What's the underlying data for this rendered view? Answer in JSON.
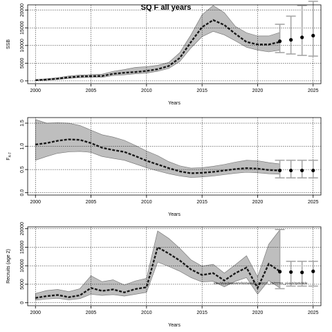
{
  "chart_data": [
    {
      "type": "line",
      "title": "SQ F all years",
      "xlabel": "Years",
      "ylabel": "SSB",
      "xlim": [
        1999.3,
        2025.7
      ],
      "ylim": [
        -800,
        21500
      ],
      "xticks": [
        2000,
        2005,
        2010,
        2015,
        2020,
        2025
      ],
      "yticks": [
        0,
        5000,
        10000,
        15000,
        20000
      ],
      "grid": true,
      "band_color": "#bebebe",
      "errorbar_color": "#a6a6a6",
      "x": [
        2000,
        2001,
        2002,
        2003,
        2004,
        2005,
        2006,
        2007,
        2008,
        2009,
        2010,
        2011,
        2012,
        2013,
        2014,
        2015,
        2016,
        2017,
        2018,
        2019,
        2020,
        2021,
        2022
      ],
      "median": [
        200,
        350,
        600,
        1000,
        1250,
        1350,
        1400,
        2000,
        2300,
        2500,
        2800,
        3300,
        4200,
        6500,
        11000,
        15200,
        17200,
        15800,
        13300,
        11000,
        10300,
        10300,
        11000
      ],
      "lower": [
        100,
        200,
        400,
        700,
        900,
        1000,
        1000,
        1500,
        1700,
        2000,
        2200,
        2700,
        3500,
        5500,
        9300,
        12500,
        14000,
        13000,
        11300,
        9500,
        8700,
        8200,
        8700
      ],
      "upper": [
        350,
        600,
        900,
        1400,
        1650,
        1750,
        1900,
        2700,
        3200,
        3800,
        4000,
        4400,
        5200,
        8000,
        13000,
        18700,
        21300,
        19300,
        15400,
        13600,
        12700,
        12700,
        13700
      ],
      "forecast": {
        "x": [
          2022,
          2023,
          2024,
          2025
        ],
        "value": [
          11200,
          11600,
          12300,
          12800
        ],
        "lower": [
          8000,
          7600,
          7200,
          7000
        ],
        "upper": [
          16000,
          18300,
          21300,
          22500
        ]
      }
    },
    {
      "type": "line",
      "xlabel": "Years",
      "ylabel": "F",
      "ylabel_sub": "4-7",
      "xlim": [
        1999.3,
        2025.7
      ],
      "ylim": [
        -0.05,
        1.62
      ],
      "xticks": [
        2000,
        2005,
        2010,
        2015,
        2020,
        2025
      ],
      "yticks": [
        0.0,
        0.5,
        1.0,
        1.5
      ],
      "ytick_labels": [
        "0.0",
        "0.5",
        "1.0",
        "1.5"
      ],
      "grid": true,
      "band_color": "#bebebe",
      "errorbar_color": "#a6a6a6",
      "x": [
        2000,
        2001,
        2002,
        2003,
        2004,
        2005,
        2006,
        2007,
        2008,
        2009,
        2010,
        2011,
        2012,
        2013,
        2014,
        2015,
        2016,
        2017,
        2018,
        2019,
        2020,
        2021,
        2022
      ],
      "median": [
        1.04,
        1.07,
        1.12,
        1.15,
        1.14,
        1.07,
        0.97,
        0.92,
        0.88,
        0.79,
        0.69,
        0.61,
        0.53,
        0.46,
        0.42,
        0.43,
        0.45,
        0.48,
        0.51,
        0.53,
        0.52,
        0.49,
        0.48
      ],
      "lower": [
        0.7,
        0.78,
        0.85,
        0.88,
        0.89,
        0.87,
        0.78,
        0.74,
        0.7,
        0.62,
        0.54,
        0.47,
        0.41,
        0.36,
        0.33,
        0.34,
        0.36,
        0.39,
        0.42,
        0.44,
        0.43,
        0.41,
        0.4
      ],
      "upper": [
        1.58,
        1.5,
        1.51,
        1.5,
        1.45,
        1.35,
        1.25,
        1.2,
        1.13,
        1.02,
        0.9,
        0.8,
        0.67,
        0.58,
        0.53,
        0.54,
        0.57,
        0.61,
        0.66,
        0.7,
        0.69,
        0.65,
        0.62
      ],
      "forecast": {
        "x": [
          2022,
          2023,
          2024,
          2025
        ],
        "value": [
          0.48,
          0.48,
          0.48,
          0.48
        ],
        "lower": [
          0.32,
          0.32,
          0.32,
          0.32
        ],
        "upper": [
          0.7,
          0.7,
          0.7,
          0.7
        ]
      }
    },
    {
      "type": "line",
      "xlabel": "Years",
      "ylabel": "Recruits (age 2)",
      "xlim": [
        1999.3,
        2025.7
      ],
      "ylim": [
        -800,
        20500
      ],
      "xticks": [
        2000,
        2005,
        2010,
        2015,
        2020,
        2025
      ],
      "yticks": [
        0,
        5000,
        10000,
        15000,
        20000
      ],
      "grid": true,
      "band_color": "#bebebe",
      "errorbar_color": "#a6a6a6",
      "annotation": "/dev/shm/dataset/refs/shared/2_WGCG_23/TTT21_pl.ex2/2p0/ddde",
      "x": [
        2000,
        2001,
        2002,
        2003,
        2004,
        2005,
        2006,
        2007,
        2008,
        2009,
        2010,
        2011,
        2012,
        2013,
        2014,
        2015,
        2016,
        2017,
        2018,
        2019,
        2020,
        2021,
        2022
      ],
      "median": [
        1300,
        1800,
        2100,
        1500,
        2000,
        4000,
        3200,
        3600,
        2800,
        3700,
        4200,
        15000,
        13300,
        11400,
        9000,
        7500,
        8000,
        6000,
        8000,
        9500,
        4000,
        10500,
        8500
      ],
      "lower": [
        700,
        1000,
        1200,
        800,
        1100,
        2300,
        2000,
        2200,
        1800,
        2300,
        2800,
        11000,
        9800,
        8500,
        6800,
        5600,
        5800,
        4300,
        5800,
        6800,
        2300,
        6000,
        4000
      ],
      "upper": [
        2500,
        3300,
        3600,
        3000,
        3800,
        7300,
        5700,
        6200,
        4800,
        5900,
        6600,
        19400,
        17400,
        14700,
        11600,
        9900,
        10400,
        8000,
        10300,
        12700,
        7000,
        15800,
        19700
      ],
      "forecast": {
        "x": [
          2022,
          2023,
          2024,
          2025
        ],
        "value": [
          8400,
          8300,
          8200,
          8500
        ],
        "lower": [
          3800,
          4500,
          4500,
          4500
        ],
        "upper": [
          19800,
          11200,
          11200,
          11200
        ]
      }
    }
  ]
}
